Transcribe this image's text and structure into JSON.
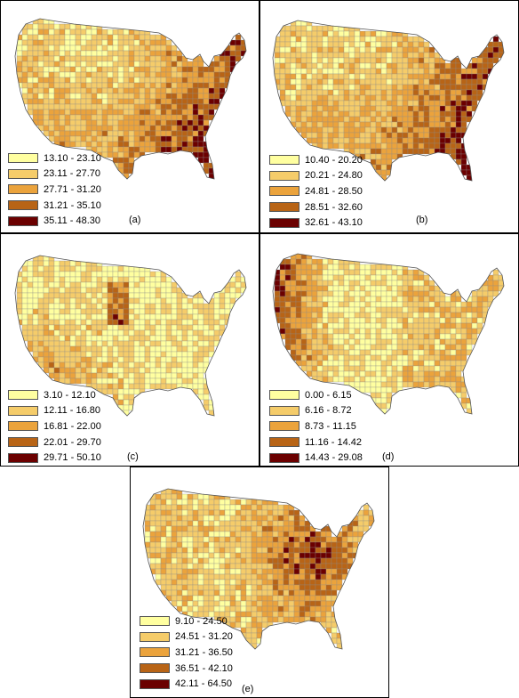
{
  "panels": [
    {
      "id": "a",
      "label": "(a)",
      "ranges": [
        "13.10 - 23.10",
        "23.11 - 27.70",
        "27.71 - 31.20",
        "31.21 - 35.10",
        "35.11 - 48.30"
      ],
      "pattern": "southeast"
    },
    {
      "id": "b",
      "label": "(b)",
      "ranges": [
        "10.40 - 20.20",
        "20.21 - 24.80",
        "24.81 - 28.50",
        "28.51 - 32.60",
        "32.61 - 43.10"
      ],
      "pattern": "southeast"
    },
    {
      "id": "c",
      "label": "(c)",
      "ranges": [
        "3.10 - 12.10",
        "12.11 - 16.80",
        "16.81 - 22.00",
        "22.01 - 29.70",
        "29.71 - 50.10"
      ],
      "pattern": "southwest"
    },
    {
      "id": "d",
      "label": "(d)",
      "ranges": [
        "0.00 - 6.15",
        "6.16 - 8.72",
        "8.73 - 11.15",
        "11.16 - 14.42",
        "14.43 - 29.08"
      ],
      "pattern": "west"
    },
    {
      "id": "e",
      "label": "(e)",
      "ranges": [
        "9.10 - 24.50",
        "24.51 - 31.20",
        "31.21 - 36.50",
        "36.51 - 42.10",
        "42.11 - 64.50"
      ],
      "pattern": "appalachia"
    }
  ],
  "legend_colors": [
    "#ffffa0",
    "#f5cc6a",
    "#eba33c",
    "#b86416",
    "#6b0000"
  ]
}
